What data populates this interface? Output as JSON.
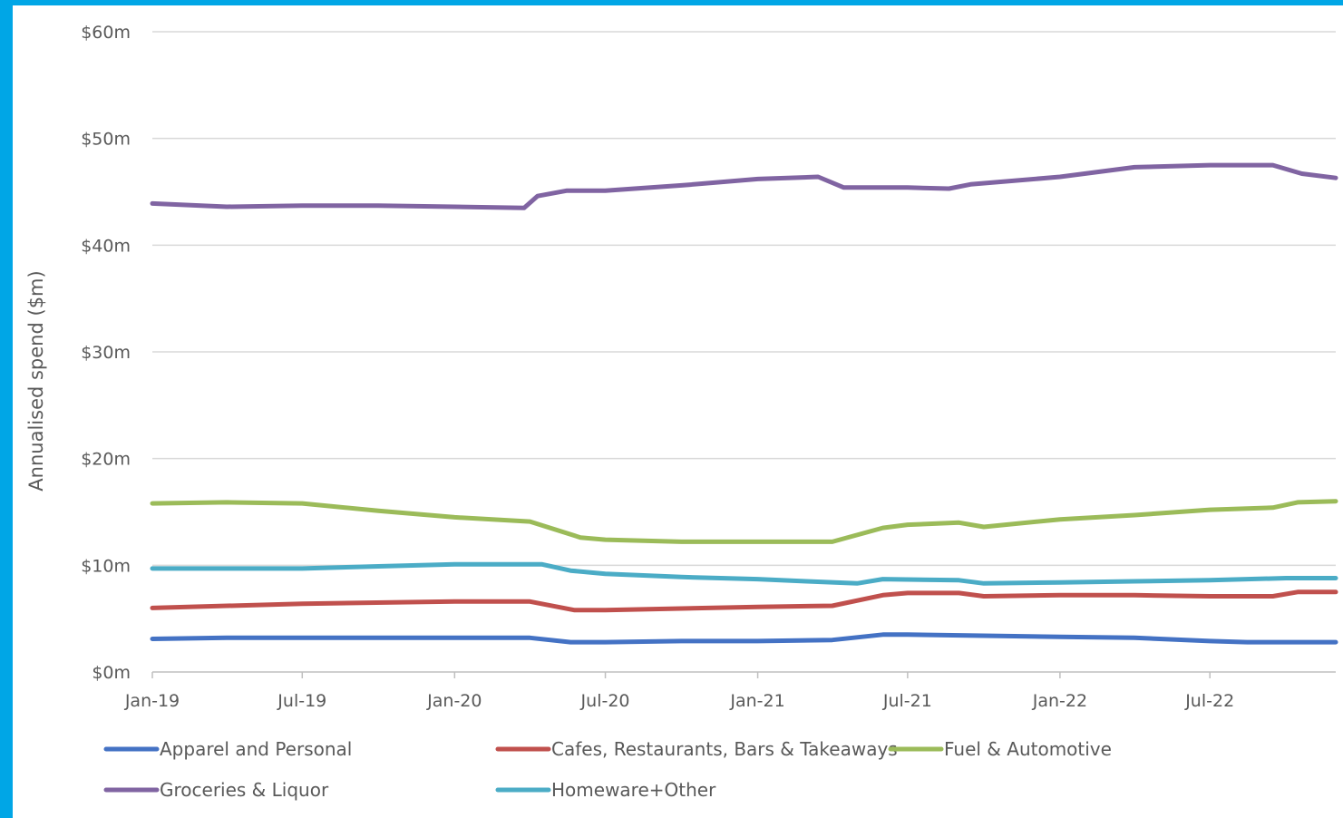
{
  "page": {
    "border_color": "#00a6e6",
    "background": "#ffffff"
  },
  "chart_data": {
    "type": "line",
    "title": "",
    "xlabel": "",
    "ylabel": "Annualised spend ($m)",
    "ylim": [
      0,
      60
    ],
    "yticks": [
      0,
      10,
      20,
      30,
      40,
      50,
      60
    ],
    "ytick_labels": [
      "$0m",
      "$10m",
      "$20m",
      "$30m",
      "$40m",
      "$50m",
      "$60m"
    ],
    "xlim": [
      "2019-01-01",
      "2022-11-30"
    ],
    "xticks": [
      "2019-01-01",
      "2019-07-01",
      "2020-01-01",
      "2020-07-01",
      "2021-01-01",
      "2021-07-01",
      "2022-01-01",
      "2022-07-01"
    ],
    "xtick_labels": [
      "Jan-19",
      "Jul-19",
      "Jan-20",
      "Jul-20",
      "Jan-21",
      "Jul-21",
      "Jan-22",
      "Jul-22"
    ],
    "grid": {
      "y": true,
      "x": false,
      "color": "#d9d9d9"
    },
    "legend_position": "bottom",
    "series": [
      {
        "name": "Apparel and Personal",
        "color": "#4472c4",
        "points": [
          [
            "2019-01-01",
            3.1
          ],
          [
            "2019-04-01",
            3.2
          ],
          [
            "2019-07-01",
            3.2
          ],
          [
            "2020-01-01",
            3.2
          ],
          [
            "2020-04-01",
            3.2
          ],
          [
            "2020-05-20",
            2.8
          ],
          [
            "2020-07-01",
            2.8
          ],
          [
            "2020-10-01",
            2.9
          ],
          [
            "2021-01-01",
            2.9
          ],
          [
            "2021-04-01",
            3.0
          ],
          [
            "2021-06-01",
            3.5
          ],
          [
            "2021-07-01",
            3.5
          ],
          [
            "2021-10-01",
            3.4
          ],
          [
            "2022-01-01",
            3.3
          ],
          [
            "2022-04-01",
            3.2
          ],
          [
            "2022-07-01",
            2.9
          ],
          [
            "2022-08-15",
            2.8
          ],
          [
            "2022-11-30",
            2.8
          ]
        ]
      },
      {
        "name": "Cafes, Restaurants, Bars & Takeaways",
        "color": "#c0504d",
        "points": [
          [
            "2019-01-01",
            6.0
          ],
          [
            "2019-07-01",
            6.4
          ],
          [
            "2020-01-01",
            6.6
          ],
          [
            "2020-04-01",
            6.6
          ],
          [
            "2020-05-25",
            5.8
          ],
          [
            "2020-07-01",
            5.8
          ],
          [
            "2021-01-01",
            6.1
          ],
          [
            "2021-04-01",
            6.2
          ],
          [
            "2021-06-01",
            7.2
          ],
          [
            "2021-07-01",
            7.4
          ],
          [
            "2021-09-01",
            7.4
          ],
          [
            "2021-10-01",
            7.1
          ],
          [
            "2022-01-01",
            7.2
          ],
          [
            "2022-04-01",
            7.2
          ],
          [
            "2022-07-01",
            7.1
          ],
          [
            "2022-09-15",
            7.1
          ],
          [
            "2022-10-15",
            7.5
          ],
          [
            "2022-11-30",
            7.5
          ]
        ]
      },
      {
        "name": "Fuel & Automotive",
        "color": "#9bbb59",
        "points": [
          [
            "2019-01-01",
            15.8
          ],
          [
            "2019-04-01",
            15.9
          ],
          [
            "2019-07-01",
            15.8
          ],
          [
            "2019-10-01",
            15.1
          ],
          [
            "2020-01-01",
            14.5
          ],
          [
            "2020-04-01",
            14.1
          ],
          [
            "2020-06-01",
            12.6
          ],
          [
            "2020-07-01",
            12.4
          ],
          [
            "2020-10-01",
            12.2
          ],
          [
            "2021-01-01",
            12.2
          ],
          [
            "2021-04-01",
            12.2
          ],
          [
            "2021-06-01",
            13.5
          ],
          [
            "2021-07-01",
            13.8
          ],
          [
            "2021-09-01",
            14.0
          ],
          [
            "2021-10-01",
            13.6
          ],
          [
            "2022-01-01",
            14.3
          ],
          [
            "2022-04-01",
            14.7
          ],
          [
            "2022-07-01",
            15.2
          ],
          [
            "2022-09-15",
            15.4
          ],
          [
            "2022-10-15",
            15.9
          ],
          [
            "2022-11-30",
            16.0
          ]
        ]
      },
      {
        "name": "Groceries & Liquor",
        "color": "#8064a2",
        "points": [
          [
            "2019-01-01",
            43.9
          ],
          [
            "2019-04-01",
            43.6
          ],
          [
            "2019-07-01",
            43.7
          ],
          [
            "2019-10-01",
            43.7
          ],
          [
            "2020-01-01",
            43.6
          ],
          [
            "2020-03-25",
            43.5
          ],
          [
            "2020-04-10",
            44.6
          ],
          [
            "2020-05-15",
            45.1
          ],
          [
            "2020-07-01",
            45.1
          ],
          [
            "2020-10-01",
            45.6
          ],
          [
            "2021-01-01",
            46.2
          ],
          [
            "2021-03-15",
            46.4
          ],
          [
            "2021-04-15",
            45.4
          ],
          [
            "2021-07-01",
            45.4
          ],
          [
            "2021-08-20",
            45.3
          ],
          [
            "2021-09-15",
            45.7
          ],
          [
            "2022-01-01",
            46.4
          ],
          [
            "2022-04-01",
            47.3
          ],
          [
            "2022-07-01",
            47.5
          ],
          [
            "2022-09-15",
            47.5
          ],
          [
            "2022-10-20",
            46.7
          ],
          [
            "2022-11-30",
            46.3
          ]
        ]
      },
      {
        "name": "Homeware+Other",
        "color": "#4bacc6",
        "points": [
          [
            "2019-01-01",
            9.7
          ],
          [
            "2019-07-01",
            9.7
          ],
          [
            "2019-10-01",
            9.9
          ],
          [
            "2020-01-01",
            10.1
          ],
          [
            "2020-04-15",
            10.1
          ],
          [
            "2020-05-20",
            9.5
          ],
          [
            "2020-07-01",
            9.2
          ],
          [
            "2020-10-01",
            8.9
          ],
          [
            "2021-01-01",
            8.7
          ],
          [
            "2021-03-01",
            8.5
          ],
          [
            "2021-05-01",
            8.3
          ],
          [
            "2021-06-01",
            8.7
          ],
          [
            "2021-09-01",
            8.6
          ],
          [
            "2021-10-01",
            8.3
          ],
          [
            "2022-01-01",
            8.4
          ],
          [
            "2022-04-01",
            8.5
          ],
          [
            "2022-07-01",
            8.6
          ],
          [
            "2022-10-01",
            8.8
          ],
          [
            "2022-11-30",
            8.8
          ]
        ]
      }
    ]
  }
}
